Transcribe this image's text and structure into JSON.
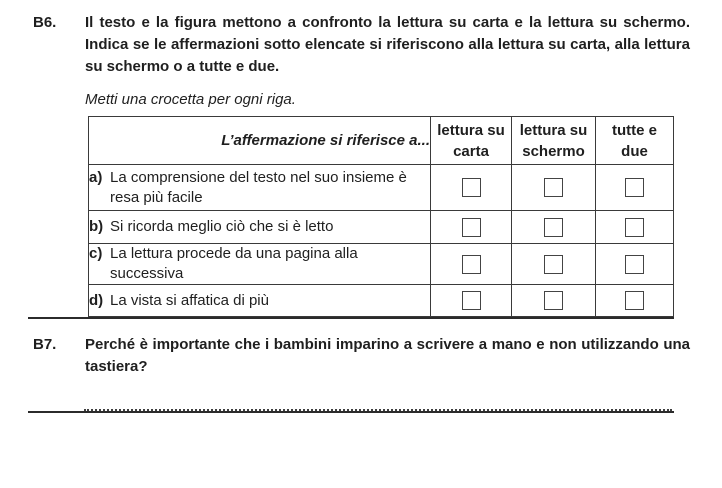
{
  "page": {
    "background": "#ffffff",
    "text_color": "#1f1f1f",
    "border_color": "#3a3a3a"
  },
  "b6": {
    "number": "B6.",
    "text": "Il testo e la figura mettono a confronto la lettura su carta e la lettura su schermo. Indica se le affermazioni sotto elencate si riferiscono alla lettura su carta, alla lettura su schermo o a tutte e due.",
    "instruction": "Metti una crocetta per ogni riga.",
    "table": {
      "statement_header": "L’affermazione si riferisce a...",
      "columns": [
        "lettura su\ncarta",
        "lettura su\nschermo",
        "tutte e\ndue"
      ],
      "rows": [
        {
          "letter": "a)",
          "text": "La comprensione del testo nel suo insieme è resa più facile",
          "checked": [
            false,
            false,
            false
          ]
        },
        {
          "letter": "b)",
          "text": "Si ricorda meglio ciò che si è letto",
          "checked": [
            false,
            false,
            false
          ]
        },
        {
          "letter": "c)",
          "text": "La lettura procede da una pagina alla successiva",
          "checked": [
            false,
            false,
            false
          ]
        },
        {
          "letter": "d)",
          "text": "La vista si affatica di più",
          "checked": [
            false,
            false,
            false
          ]
        }
      ]
    }
  },
  "b7": {
    "number": "B7.",
    "text": "Perché è importante che i bambini imparino a scrivere a mano e non utilizzando una tastiera?",
    "answer_value": ""
  }
}
